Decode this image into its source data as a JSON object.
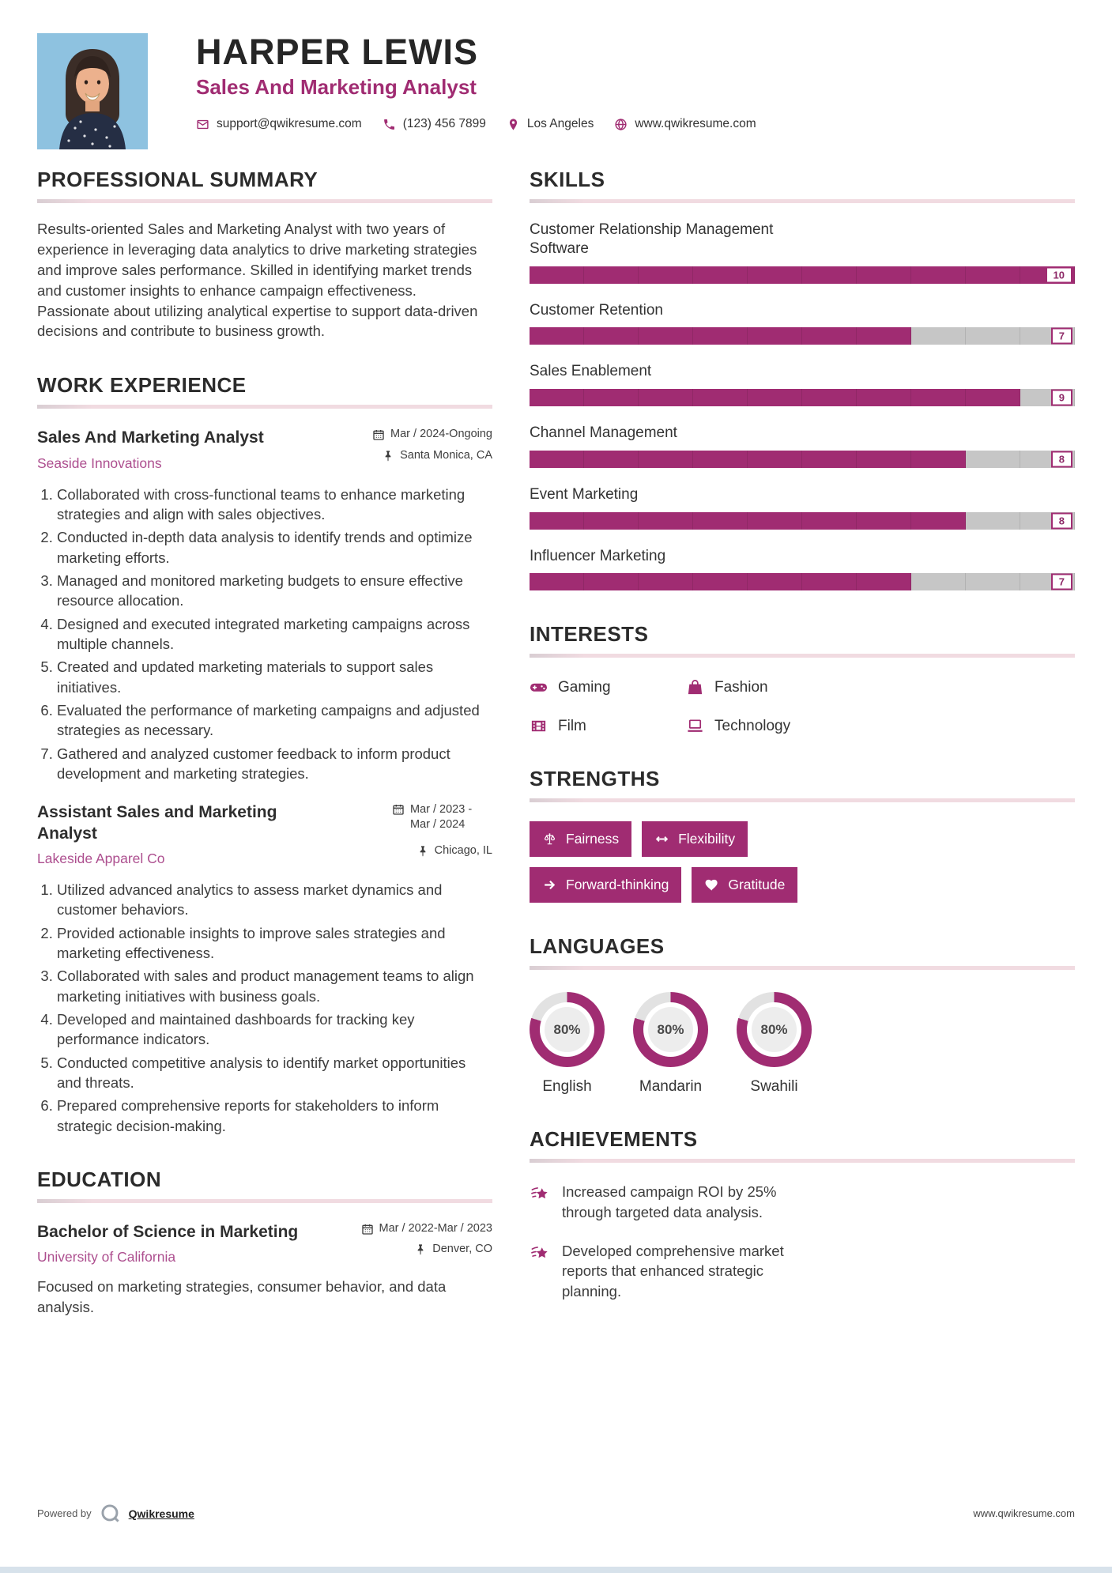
{
  "colors": {
    "accent": "#a02c72",
    "accent_light": "#ad4f8f",
    "heading_underline_pink": "#f1dbe1",
    "bar_remainder_gray": "#c6c6c6",
    "donut_remainder_gray": "#e2e2e2",
    "footer_strip_blue": "#d7e2eb",
    "photo_background_blue": "#8ec2e0"
  },
  "header": {
    "name": "HARPER LEWIS",
    "title": "Sales And Marketing Analyst",
    "contacts": [
      {
        "icon": "email-icon",
        "text": "support@qwikresume.com"
      },
      {
        "icon": "phone-icon",
        "text": "(123) 456 7899"
      },
      {
        "icon": "location-pin-icon",
        "text": "Los Angeles"
      },
      {
        "icon": "globe-icon",
        "text": "www.qwikresume.com"
      }
    ]
  },
  "summary": {
    "heading": "PROFESSIONAL SUMMARY",
    "text": "Results-oriented Sales and Marketing Analyst with two years of experience in leveraging data analytics to drive marketing strategies and improve sales performance. Skilled in identifying market trends and customer insights to enhance campaign effectiveness. Passionate about utilizing analytical expertise to support data-driven decisions and contribute to business growth."
  },
  "experience": {
    "heading": "WORK EXPERIENCE",
    "jobs": [
      {
        "title": "Sales And Marketing Analyst",
        "company": "Seaside Innovations",
        "dates": "Mar / 2024-Ongoing",
        "location": "Santa Monica, CA",
        "bullets": [
          "Collaborated with cross-functional teams to enhance marketing strategies and align with sales objectives.",
          "Conducted in-depth data analysis to identify trends and optimize marketing efforts.",
          "Managed and monitored marketing budgets to ensure effective resource allocation.",
          "Designed and executed integrated marketing campaigns across multiple channels.",
          "Created and updated marketing materials to support sales initiatives.",
          "Evaluated the performance of marketing campaigns and adjusted strategies as necessary.",
          "Gathered and analyzed customer feedback to inform product development and marketing strategies."
        ]
      },
      {
        "title": "Assistant Sales and Marketing Analyst",
        "company": "Lakeside Apparel Co",
        "dates": "Mar / 2023 - Mar / 2024",
        "location": "Chicago, IL",
        "bullets": [
          "Utilized advanced analytics to assess market dynamics and customer behaviors.",
          "Provided actionable insights to improve sales strategies and marketing effectiveness.",
          "Collaborated with sales and product management teams to align marketing initiatives with business goals.",
          "Developed and maintained dashboards for tracking key performance indicators.",
          "Conducted competitive analysis to identify market opportunities and threats.",
          "Prepared comprehensive reports for stakeholders to inform strategic decision-making."
        ]
      }
    ]
  },
  "education": {
    "heading": "EDUCATION",
    "degree": "Bachelor of Science in Marketing",
    "school": "University of California",
    "dates": "Mar / 2022-Mar / 2023",
    "location": "Denver, CO",
    "description": "Focused on marketing strategies, consumer behavior, and data analysis."
  },
  "skills": {
    "heading": "SKILLS",
    "max": 10,
    "items": [
      {
        "label": "Customer Relationship Management Software",
        "value": 10
      },
      {
        "label": "Customer Retention",
        "value": 7
      },
      {
        "label": "Sales Enablement",
        "value": 9
      },
      {
        "label": "Channel Management",
        "value": 8
      },
      {
        "label": "Event Marketing",
        "value": 8
      },
      {
        "label": "Influencer Marketing",
        "value": 7
      }
    ]
  },
  "interests": {
    "heading": "INTERESTS",
    "items": [
      {
        "icon": "gamepad-icon",
        "label": "Gaming"
      },
      {
        "icon": "shopping-bag-icon",
        "label": "Fashion"
      },
      {
        "icon": "film-icon",
        "label": "Film"
      },
      {
        "icon": "laptop-icon",
        "label": "Technology"
      }
    ]
  },
  "strengths": {
    "heading": "STRENGTHS",
    "items": [
      {
        "icon": "scales-icon",
        "label": "Fairness"
      },
      {
        "icon": "left-right-arrow-icon",
        "label": "Flexibility"
      },
      {
        "icon": "right-arrow-icon",
        "label": "Forward-thinking"
      },
      {
        "icon": "heart-icon",
        "label": "Gratitude"
      }
    ]
  },
  "languages": {
    "heading": "LANGUAGES",
    "items": [
      {
        "name": "English",
        "percent": 80
      },
      {
        "name": "Mandarin",
        "percent": 80
      },
      {
        "name": "Swahili",
        "percent": 80
      }
    ]
  },
  "achievements": {
    "heading": "ACHIEVEMENTS",
    "items": [
      "Increased campaign ROI by 25% through targeted data analysis.",
      "Developed comprehensive market reports that enhanced strategic planning."
    ]
  },
  "footer": {
    "powered_by": "Powered by",
    "brand": "Qwikresume",
    "site": "www.qwikresume.com"
  }
}
